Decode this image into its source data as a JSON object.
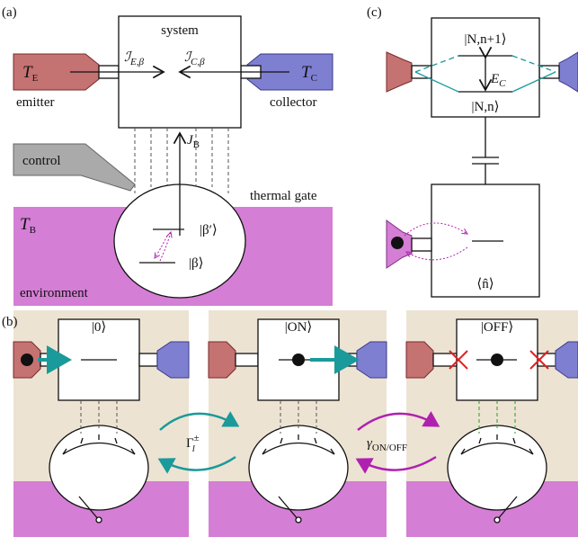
{
  "panel_a": {
    "label": "(a)",
    "system": "system",
    "emitter_temp": {
      "main": "T",
      "sub": "E"
    },
    "collector_temp": {
      "main": "T",
      "sub": "C"
    },
    "emitter": "emitter",
    "collector": "collector",
    "current_e": {
      "main": "ℐ",
      "sub": "E,β"
    },
    "current_c": {
      "main": "ℐ",
      "sub": "C,β"
    },
    "heat_current": {
      "main": "J",
      "sub": "B"
    },
    "control": "control",
    "thermal_gate": "thermal gate",
    "bath_temp": {
      "main": "T",
      "sub": "B"
    },
    "level_upper": "|β′⟩",
    "level_lower": "|β⟩",
    "environment": "environment"
  },
  "panel_c": {
    "label": "(c)",
    "state_upper": "|N,n+1⟩",
    "state_lower": "|N,n⟩",
    "charging_energy": {
      "main": "E",
      "sub": "C"
    },
    "occupation": "⟨n̂⟩"
  },
  "panel_b": {
    "label": "(b)",
    "states": [
      "|0⟩",
      "|ON⟩",
      "|OFF⟩"
    ],
    "rate_l": {
      "main": "Γ",
      "sup": "±",
      "sub": "l"
    },
    "rate_switch": {
      "main": "γ",
      "sub": "ON/OFF"
    }
  }
}
